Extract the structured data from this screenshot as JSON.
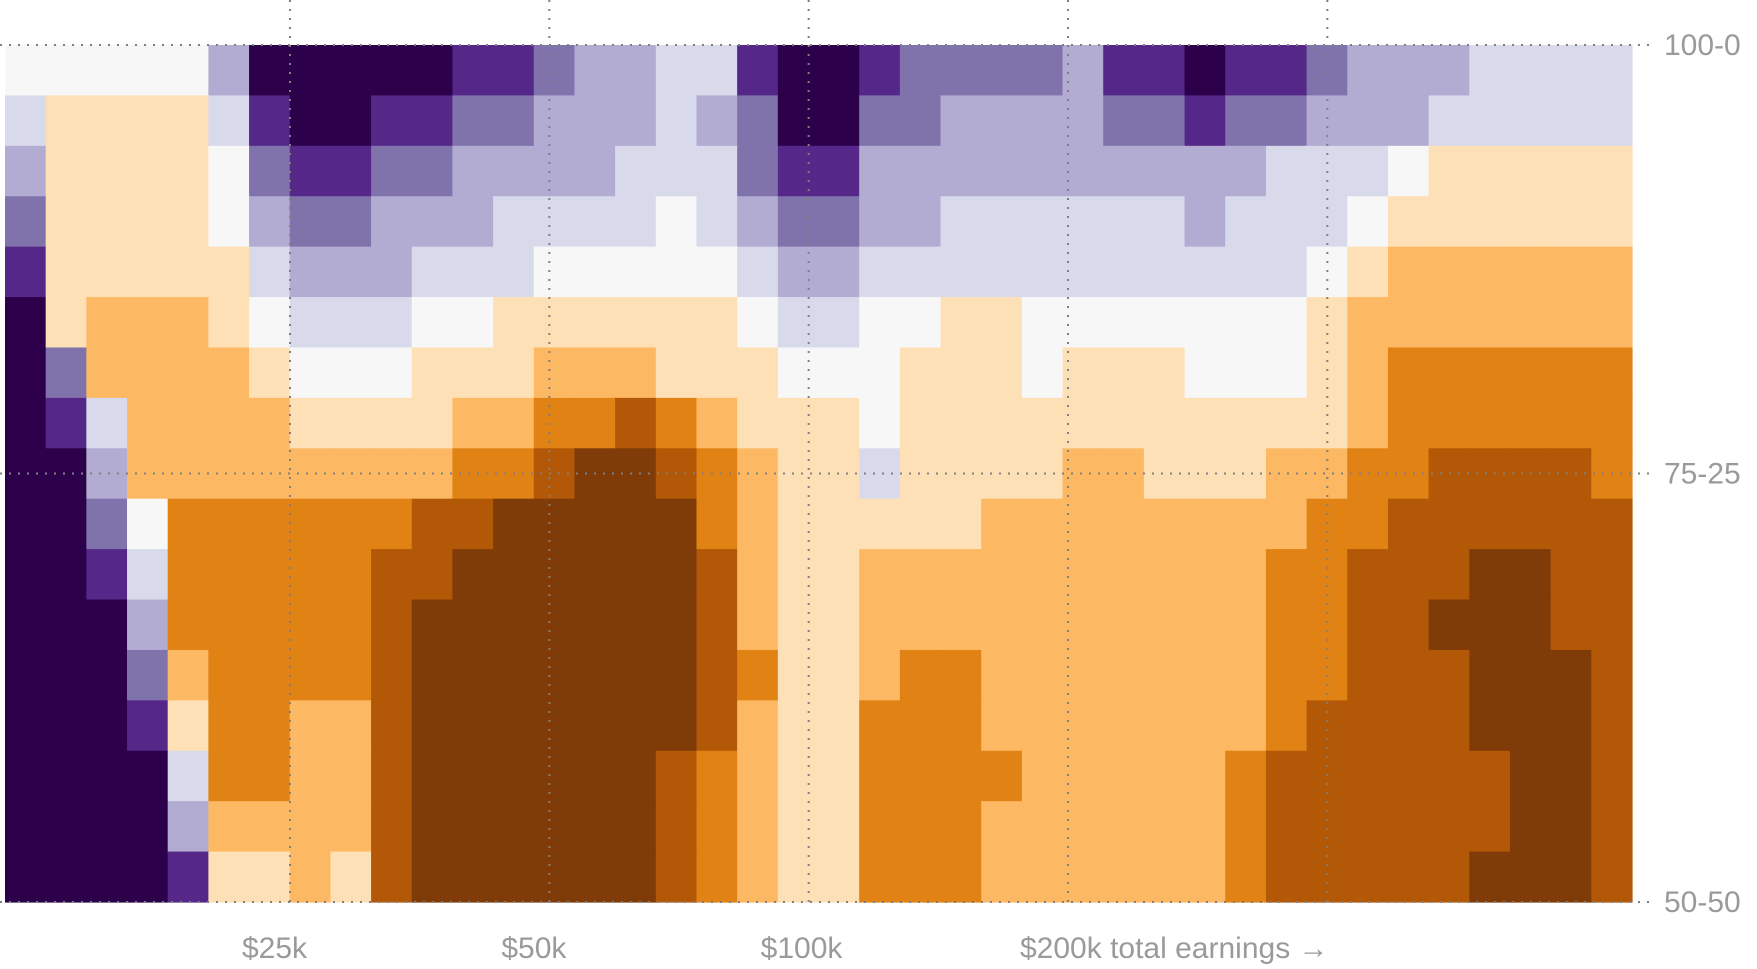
{
  "chart_data": {
    "type": "heatmap",
    "title": "",
    "x_axis": {
      "scale": "log",
      "tick_labels": [
        "$25k",
        "$50k",
        "$100k",
        "$200k total earnings →"
      ],
      "tick_values": [
        25000,
        50000,
        100000,
        200000
      ]
    },
    "y_axis": {
      "tick_labels": [
        "100-0",
        "75-25",
        "50-50"
      ],
      "tick_values": [
        100,
        75,
        50
      ]
    },
    "grid": true,
    "extra_vertical_gridline_value": 400000,
    "color_scale": [
      "#2d004b",
      "#542788",
      "#8073ac",
      "#b2abd2",
      "#d8daeb",
      "#f7f7f7",
      "#fee0b6",
      "#fdb863",
      "#e08214",
      "#b35806",
      "#7f3b08"
    ],
    "x_columns": [
      13500,
      14800,
      16200,
      17800,
      19500,
      21400,
      23500,
      25800,
      28300,
      31000,
      34000,
      37300,
      40900,
      44900,
      49200,
      54000,
      59200,
      65000,
      71300,
      78200,
      85800,
      94100,
      103000,
      113000,
      124000,
      136000,
      149000,
      164000,
      180000,
      197000,
      216000,
      237000,
      260000,
      286000,
      313000,
      344000,
      377000,
      414000,
      454000,
      498000
    ],
    "y_rows": [
      100,
      97,
      94,
      91,
      88,
      85,
      82,
      79,
      76,
      73,
      70,
      67,
      64,
      61,
      58,
      55,
      52
    ],
    "values": [
      [
        5,
        5,
        5,
        5,
        5,
        3,
        0,
        0,
        0,
        0,
        0,
        1,
        1,
        2,
        3,
        3,
        4,
        4,
        1,
        0,
        0,
        1,
        2,
        2,
        2,
        2,
        3,
        1,
        1,
        0,
        1,
        1,
        2,
        3,
        3,
        3,
        4,
        4,
        4,
        4
      ],
      [
        4,
        6,
        6,
        6,
        6,
        4,
        1,
        0,
        0,
        1,
        1,
        2,
        2,
        3,
        3,
        3,
        4,
        3,
        2,
        0,
        0,
        2,
        2,
        3,
        3,
        3,
        3,
        2,
        2,
        1,
        2,
        2,
        3,
        3,
        3,
        4,
        4,
        4,
        4,
        4
      ],
      [
        3,
        6,
        6,
        6,
        6,
        5,
        2,
        1,
        1,
        2,
        2,
        3,
        3,
        3,
        3,
        4,
        4,
        4,
        2,
        1,
        1,
        3,
        3,
        3,
        3,
        3,
        3,
        3,
        3,
        3,
        3,
        4,
        4,
        4,
        5,
        6,
        6,
        6,
        6,
        6
      ],
      [
        2,
        6,
        6,
        6,
        6,
        5,
        3,
        2,
        2,
        3,
        3,
        3,
        4,
        4,
        4,
        4,
        5,
        4,
        3,
        2,
        2,
        3,
        3,
        4,
        4,
        4,
        4,
        4,
        4,
        3,
        4,
        4,
        4,
        5,
        6,
        6,
        6,
        6,
        6,
        6
      ],
      [
        1,
        6,
        6,
        6,
        6,
        6,
        4,
        3,
        3,
        3,
        4,
        4,
        4,
        5,
        5,
        5,
        5,
        5,
        4,
        3,
        3,
        4,
        4,
        4,
        4,
        4,
        4,
        4,
        4,
        4,
        4,
        4,
        5,
        6,
        7,
        7,
        7,
        7,
        7,
        7
      ],
      [
        0,
        6,
        7,
        7,
        7,
        6,
        5,
        4,
        4,
        4,
        5,
        5,
        6,
        6,
        6,
        6,
        6,
        6,
        5,
        4,
        4,
        5,
        5,
        6,
        6,
        5,
        5,
        5,
        5,
        5,
        5,
        5,
        6,
        7,
        7,
        7,
        7,
        7,
        7,
        7
      ],
      [
        0,
        2,
        7,
        7,
        7,
        7,
        6,
        5,
        5,
        5,
        6,
        6,
        6,
        7,
        7,
        7,
        6,
        6,
        6,
        5,
        5,
        5,
        6,
        6,
        6,
        5,
        6,
        6,
        6,
        5,
        5,
        5,
        6,
        7,
        8,
        8,
        8,
        8,
        8,
        8
      ],
      [
        0,
        1,
        4,
        7,
        7,
        7,
        7,
        6,
        6,
        6,
        6,
        7,
        7,
        8,
        8,
        9,
        8,
        7,
        6,
        6,
        6,
        5,
        6,
        6,
        6,
        6,
        6,
        6,
        6,
        6,
        6,
        6,
        6,
        7,
        8,
        8,
        8,
        8,
        8,
        8
      ],
      [
        0,
        0,
        3,
        7,
        7,
        7,
        7,
        7,
        7,
        7,
        7,
        8,
        8,
        9,
        10,
        10,
        9,
        8,
        7,
        6,
        6,
        4,
        6,
        6,
        6,
        6,
        7,
        7,
        6,
        6,
        6,
        7,
        7,
        8,
        8,
        9,
        9,
        9,
        9,
        8
      ],
      [
        0,
        0,
        2,
        5,
        8,
        8,
        8,
        8,
        8,
        8,
        9,
        9,
        10,
        10,
        10,
        10,
        10,
        8,
        7,
        6,
        6,
        6,
        6,
        6,
        7,
        7,
        7,
        7,
        7,
        7,
        7,
        7,
        8,
        8,
        9,
        9,
        9,
        9,
        9,
        9
      ],
      [
        0,
        0,
        1,
        4,
        8,
        8,
        8,
        8,
        8,
        9,
        9,
        10,
        10,
        10,
        10,
        10,
        10,
        9,
        7,
        6,
        6,
        7,
        7,
        7,
        7,
        7,
        7,
        7,
        7,
        7,
        7,
        8,
        8,
        9,
        9,
        9,
        10,
        10,
        9,
        9
      ],
      [
        0,
        0,
        0,
        3,
        8,
        8,
        8,
        8,
        8,
        9,
        10,
        10,
        10,
        10,
        10,
        10,
        10,
        9,
        7,
        6,
        6,
        7,
        7,
        7,
        7,
        7,
        7,
        7,
        7,
        7,
        7,
        8,
        8,
        9,
        9,
        10,
        10,
        10,
        9,
        9
      ],
      [
        0,
        0,
        0,
        2,
        7,
        8,
        8,
        8,
        8,
        9,
        10,
        10,
        10,
        10,
        10,
        10,
        10,
        9,
        8,
        6,
        6,
        7,
        8,
        8,
        7,
        7,
        7,
        7,
        7,
        7,
        7,
        8,
        8,
        9,
        9,
        9,
        10,
        10,
        10,
        9
      ],
      [
        0,
        0,
        0,
        1,
        6,
        8,
        8,
        7,
        7,
        9,
        10,
        10,
        10,
        10,
        10,
        10,
        10,
        9,
        7,
        6,
        6,
        8,
        8,
        8,
        7,
        7,
        7,
        7,
        7,
        7,
        7,
        8,
        9,
        9,
        9,
        9,
        10,
        10,
        10,
        9
      ],
      [
        0,
        0,
        0,
        0,
        4,
        8,
        8,
        7,
        7,
        9,
        10,
        10,
        10,
        10,
        10,
        10,
        9,
        8,
        7,
        6,
        6,
        8,
        8,
        8,
        8,
        7,
        7,
        7,
        7,
        7,
        8,
        9,
        9,
        9,
        9,
        9,
        9,
        10,
        10,
        9
      ],
      [
        0,
        0,
        0,
        0,
        3,
        7,
        7,
        7,
        7,
        9,
        10,
        10,
        10,
        10,
        10,
        10,
        9,
        8,
        7,
        6,
        6,
        8,
        8,
        8,
        7,
        7,
        7,
        7,
        7,
        7,
        8,
        9,
        9,
        9,
        9,
        9,
        9,
        10,
        10,
        9
      ],
      [
        0,
        0,
        0,
        0,
        1,
        6,
        6,
        7,
        6,
        9,
        10,
        10,
        10,
        10,
        10,
        10,
        9,
        8,
        7,
        6,
        6,
        8,
        8,
        8,
        7,
        7,
        7,
        7,
        7,
        7,
        8,
        9,
        9,
        9,
        9,
        9,
        10,
        10,
        10,
        9
      ]
    ]
  }
}
